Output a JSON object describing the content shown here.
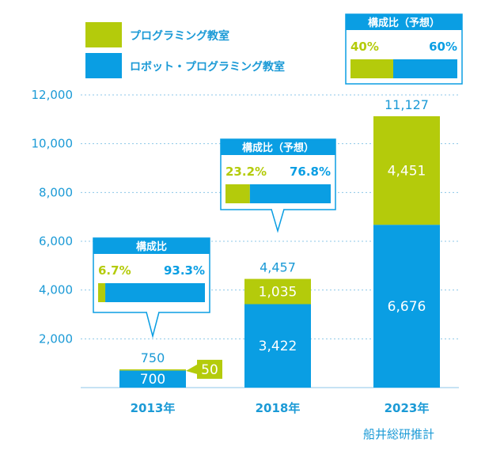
{
  "colors": {
    "programming": "#b4cb0b",
    "robot": "#0a9ee3",
    "text": "#1b9ad6",
    "grid": "#8cc7e8"
  },
  "legend": {
    "programming": "プログラミング教室",
    "robot": "ロボット・プログラミング教室"
  },
  "source_note": "船井総研推計",
  "composition_boxes": [
    {
      "title": "構成比",
      "programming_pct": "6.7%",
      "robot_pct": "93.3%",
      "programming_share": 0.067
    },
    {
      "title": "構成比（予想）",
      "programming_pct": "23.2%",
      "robot_pct": "76.8%",
      "programming_share": 0.232
    },
    {
      "title": "構成比（予想）",
      "programming_pct": "40%",
      "robot_pct": "60%",
      "programming_share": 0.4
    }
  ],
  "chart_data": {
    "type": "bar",
    "stacked": true,
    "categories": [
      "2013年",
      "2018年",
      "2023年"
    ],
    "series": [
      {
        "name": "ロボット・プログラミング教室",
        "values": [
          700,
          3422,
          6676
        ],
        "labels": [
          "700",
          "3,422",
          "6,676"
        ]
      },
      {
        "name": "プログラミング教室",
        "values": [
          50,
          1035,
          4451
        ],
        "labels": [
          "50",
          "1,035",
          "4,451"
        ]
      }
    ],
    "totals": [
      750,
      4457,
      11127
    ],
    "total_labels": [
      "750",
      "4,457",
      "11,127"
    ],
    "yticks": [
      2000,
      4000,
      6000,
      8000,
      10000,
      12000
    ],
    "ytick_labels": [
      "2,000",
      "4,000",
      "6,000",
      "8,000",
      "10,000",
      "12,000"
    ],
    "ylim": [
      0,
      12500
    ],
    "grid": true,
    "legend_position": "top-left"
  }
}
